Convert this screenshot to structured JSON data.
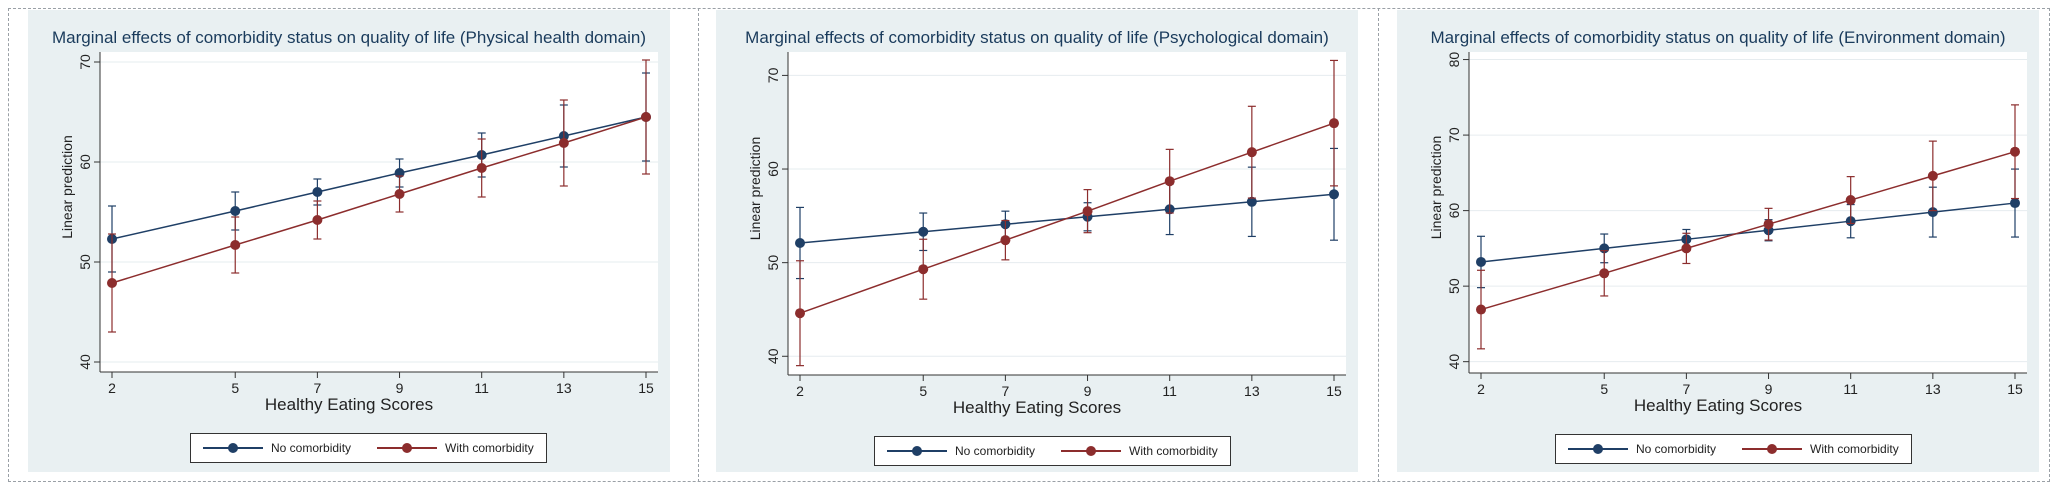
{
  "legend": {
    "no_comorbidity": "No comorbidity",
    "with_comorbidity": "With comorbidity"
  },
  "colors": {
    "no_comorbidity": "#1f3f66",
    "with_comorbidity": "#8c2d2d",
    "panel_bg": "#e9f0f2",
    "plot_bg": "#ffffff"
  },
  "chart_data": [
    {
      "type": "line",
      "title": "Marginal effects of comorbidity status on quality of life (Physical health domain)",
      "xlabel": "Healthy Eating Scores",
      "ylabel": "Linear prediction",
      "x": [
        2,
        5,
        7,
        9,
        11,
        13,
        15
      ],
      "xticks": [
        2,
        5,
        7,
        9,
        11,
        13,
        15
      ],
      "yticks": [
        40,
        50,
        60,
        70
      ],
      "ylim": [
        39,
        71
      ],
      "grid": true,
      "legend_position": "bottom",
      "series": [
        {
          "name": "No comorbidity",
          "values": [
            52.3,
            55.1,
            57.0,
            58.9,
            60.7,
            62.6,
            64.5
          ],
          "lower": [
            49.0,
            53.2,
            55.7,
            57.5,
            58.5,
            59.5,
            60.1
          ],
          "upper": [
            55.6,
            57.0,
            58.3,
            60.3,
            62.9,
            65.7,
            68.9
          ]
        },
        {
          "name": "With comorbidity",
          "values": [
            47.9,
            51.7,
            54.2,
            56.8,
            59.4,
            61.9,
            64.5
          ],
          "lower": [
            43.0,
            48.9,
            52.3,
            55.0,
            56.5,
            57.6,
            58.8
          ],
          "upper": [
            52.8,
            54.5,
            56.1,
            58.6,
            62.3,
            66.2,
            70.2
          ]
        }
      ]
    },
    {
      "type": "line",
      "title": "Marginal effects of comorbidity status on quality of life (Psychological domain)",
      "xlabel": "Healthy Eating Scores",
      "ylabel": "Linear prediction",
      "x": [
        2,
        5,
        7,
        9,
        11,
        13,
        15
      ],
      "xticks": [
        2,
        5,
        7,
        9,
        11,
        13,
        15
      ],
      "yticks": [
        40,
        50,
        60,
        70
      ],
      "ylim": [
        38,
        72.5
      ],
      "grid": true,
      "legend_position": "bottom",
      "series": [
        {
          "name": "No comorbidity",
          "values": [
            52.1,
            53.3,
            54.1,
            54.9,
            55.7,
            56.5,
            57.3
          ],
          "lower": [
            48.3,
            51.3,
            52.7,
            53.4,
            53.0,
            52.8,
            52.4
          ],
          "upper": [
            55.9,
            55.3,
            55.5,
            56.4,
            58.4,
            60.2,
            62.2
          ]
        },
        {
          "name": "With comorbidity",
          "values": [
            44.6,
            49.3,
            52.4,
            55.5,
            58.7,
            61.8,
            64.9
          ],
          "lower": [
            39.0,
            46.1,
            50.3,
            53.2,
            55.3,
            56.9,
            58.2
          ],
          "upper": [
            50.2,
            52.5,
            54.5,
            57.8,
            62.1,
            66.7,
            71.6
          ]
        }
      ]
    },
    {
      "type": "line",
      "title": "Marginal effects of comorbidity status on quality of life (Environment domain)",
      "xlabel": "Healthy Eating Scores",
      "ylabel": "Linear prediction",
      "x": [
        2,
        5,
        7,
        9,
        11,
        13,
        15
      ],
      "xticks": [
        2,
        5,
        7,
        9,
        11,
        13,
        15
      ],
      "yticks": [
        40,
        50,
        60,
        70,
        80
      ],
      "ylim": [
        38.5,
        81
      ],
      "grid": true,
      "legend_position": "bottom",
      "series": [
        {
          "name": "No comorbidity",
          "values": [
            53.2,
            55.0,
            56.2,
            57.4,
            58.6,
            59.8,
            61.0
          ],
          "lower": [
            49.8,
            53.1,
            54.9,
            56.0,
            56.4,
            56.5,
            56.5
          ],
          "upper": [
            56.6,
            56.9,
            57.5,
            58.8,
            60.8,
            63.1,
            65.5
          ]
        },
        {
          "name": "With comorbidity",
          "values": [
            46.9,
            51.7,
            55.0,
            58.2,
            61.4,
            64.6,
            67.8
          ],
          "lower": [
            41.7,
            48.7,
            53.0,
            56.1,
            58.3,
            60.0,
            61.6
          ],
          "upper": [
            52.1,
            54.7,
            57.0,
            60.3,
            64.5,
            69.2,
            74.0
          ]
        }
      ]
    }
  ]
}
